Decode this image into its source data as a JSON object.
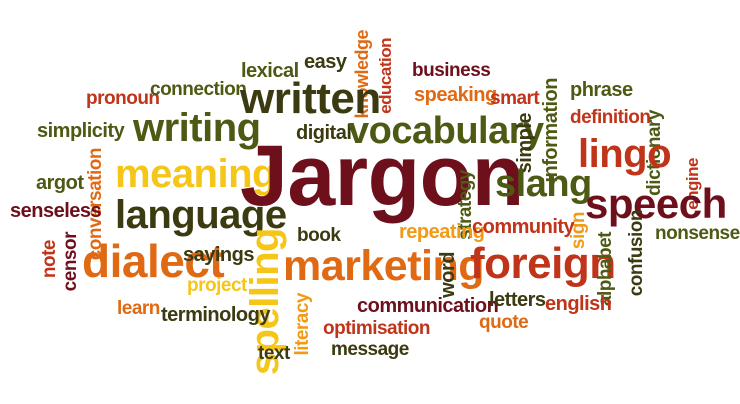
{
  "words": {
    "jargon": "Jargon",
    "written": "written",
    "vocabulary": "vocabulary",
    "writing": "writing",
    "meaning": "meaning",
    "language": "language",
    "dialect": "dialect",
    "marketing": "marketing",
    "foreign": "foreign",
    "slang": "slang",
    "speech": "speech",
    "lingo": "lingo",
    "spelling": "spelling",
    "lexical": "lexical",
    "easy": "easy",
    "knowledge": "knowledge",
    "education": "education",
    "business": "business",
    "speaking": "speaking",
    "smart": "smart",
    "pronoun": "pronoun",
    "connection": "connection",
    "simplicity": "simplicity",
    "digital": "digital",
    "information": "information",
    "simple": "simple",
    "phrase": "phrase",
    "definition": "definition",
    "dictionary": "dictionary",
    "engine": "engine",
    "argot": "argot",
    "conversation": "conversation",
    "senseless": "senseless",
    "strategy": "strategy",
    "community": "community",
    "sign": "sign",
    "note": "note",
    "censor": "censor",
    "sayings": "sayings",
    "book": "book",
    "repeating": "repeating",
    "word": "word",
    "alphabet": "alphabet",
    "confusion": "confusion",
    "nonsense": "nonsense",
    "project": "project",
    "learn": "learn",
    "terminology": "terminology",
    "literacy": "literacy",
    "communication": "communication",
    "letters": "letters",
    "english": "english",
    "quote": "quote",
    "optimisation": "optimisation",
    "message": "message",
    "text": "text"
  }
}
